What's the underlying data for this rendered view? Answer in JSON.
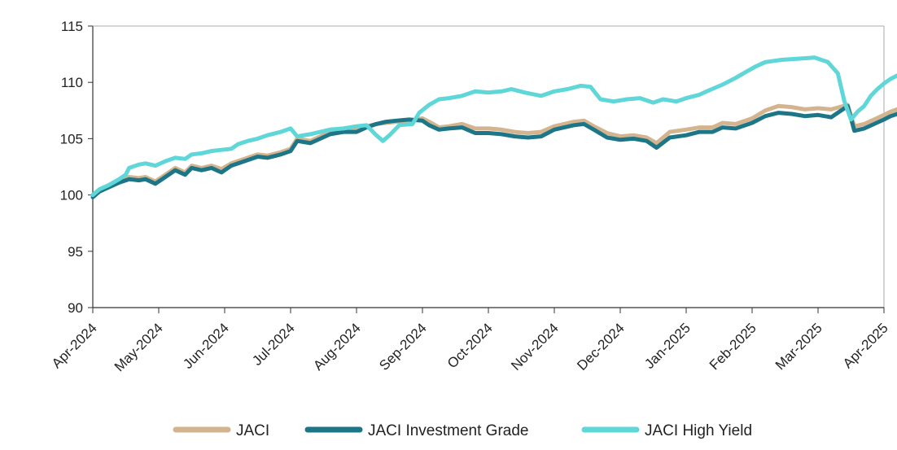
{
  "chart_data": {
    "type": "line",
    "title": "",
    "xlabel": "",
    "ylabel": "",
    "ylim": [
      90,
      115
    ],
    "yticks": [
      90,
      95,
      100,
      105,
      110,
      115
    ],
    "x_tick_labels": [
      "Apr-2024",
      "May-2024",
      "Jun-2024",
      "Jul-2024",
      "Aug-2024",
      "Sep-2024",
      "Oct-2024",
      "Nov-2024",
      "Dec-2024",
      "Jan-2025",
      "Feb-2025",
      "Mar-2025",
      "Apr-2025"
    ],
    "grid": false,
    "legend_position": "bottom",
    "series": [
      {
        "name": "JACI",
        "color": "#d4b48e",
        "points": [
          [
            0,
            100.0
          ],
          [
            0.1,
            100.4
          ],
          [
            0.25,
            100.8
          ],
          [
            0.4,
            101.3
          ],
          [
            0.55,
            101.6
          ],
          [
            0.7,
            101.5
          ],
          [
            0.8,
            101.6
          ],
          [
            0.95,
            101.2
          ],
          [
            1.1,
            101.8
          ],
          [
            1.25,
            102.4
          ],
          [
            1.4,
            102.0
          ],
          [
            1.5,
            102.6
          ],
          [
            1.65,
            102.4
          ],
          [
            1.8,
            102.6
          ],
          [
            1.95,
            102.3
          ],
          [
            2.1,
            102.8
          ],
          [
            2.3,
            103.2
          ],
          [
            2.5,
            103.6
          ],
          [
            2.65,
            103.5
          ],
          [
            2.85,
            103.8
          ],
          [
            3.0,
            104.1
          ],
          [
            3.1,
            105.0
          ],
          [
            3.3,
            104.8
          ],
          [
            3.45,
            105.2
          ],
          [
            3.6,
            105.6
          ],
          [
            3.8,
            105.8
          ],
          [
            4.0,
            105.9
          ],
          [
            4.15,
            106.1
          ],
          [
            4.3,
            106.3
          ],
          [
            4.45,
            106.4
          ],
          [
            4.6,
            106.5
          ],
          [
            4.8,
            106.6
          ],
          [
            5.0,
            106.8
          ],
          [
            5.1,
            106.5
          ],
          [
            5.25,
            106.0
          ],
          [
            5.4,
            106.1
          ],
          [
            5.6,
            106.3
          ],
          [
            5.8,
            105.9
          ],
          [
            6.0,
            105.9
          ],
          [
            6.2,
            105.8
          ],
          [
            6.4,
            105.6
          ],
          [
            6.6,
            105.5
          ],
          [
            6.8,
            105.6
          ],
          [
            7.0,
            106.1
          ],
          [
            7.15,
            106.3
          ],
          [
            7.3,
            106.5
          ],
          [
            7.45,
            106.6
          ],
          [
            7.6,
            106.1
          ],
          [
            7.8,
            105.5
          ],
          [
            8.0,
            105.2
          ],
          [
            8.2,
            105.3
          ],
          [
            8.4,
            105.1
          ],
          [
            8.55,
            104.6
          ],
          [
            8.75,
            105.6
          ],
          [
            9.0,
            105.8
          ],
          [
            9.2,
            106.0
          ],
          [
            9.4,
            106.0
          ],
          [
            9.55,
            106.4
          ],
          [
            9.75,
            106.3
          ],
          [
            10.0,
            106.8
          ],
          [
            10.2,
            107.5
          ],
          [
            10.4,
            107.9
          ],
          [
            10.6,
            107.8
          ],
          [
            10.8,
            107.6
          ],
          [
            11.0,
            107.7
          ],
          [
            11.2,
            107.6
          ],
          [
            11.45,
            108.0
          ],
          [
            11.55,
            106.1
          ],
          [
            11.7,
            106.3
          ],
          [
            11.85,
            106.7
          ],
          [
            12.0,
            107.1
          ],
          [
            12.1,
            107.4
          ],
          [
            12.2,
            107.6
          ],
          [
            12.3,
            107.8
          ],
          [
            12.35,
            108.0
          ]
        ]
      },
      {
        "name": "JACI Investment Grade",
        "color": "#1d7688",
        "points": [
          [
            0,
            99.8
          ],
          [
            0.1,
            100.3
          ],
          [
            0.25,
            100.7
          ],
          [
            0.4,
            101.1
          ],
          [
            0.55,
            101.4
          ],
          [
            0.7,
            101.3
          ],
          [
            0.8,
            101.4
          ],
          [
            0.95,
            101.0
          ],
          [
            1.1,
            101.6
          ],
          [
            1.25,
            102.2
          ],
          [
            1.4,
            101.8
          ],
          [
            1.5,
            102.4
          ],
          [
            1.65,
            102.2
          ],
          [
            1.8,
            102.4
          ],
          [
            1.95,
            102.0
          ],
          [
            2.1,
            102.6
          ],
          [
            2.3,
            103.0
          ],
          [
            2.5,
            103.4
          ],
          [
            2.65,
            103.3
          ],
          [
            2.85,
            103.6
          ],
          [
            3.0,
            103.9
          ],
          [
            3.1,
            104.8
          ],
          [
            3.3,
            104.6
          ],
          [
            3.45,
            105.0
          ],
          [
            3.6,
            105.4
          ],
          [
            3.8,
            105.6
          ],
          [
            4.0,
            105.6
          ],
          [
            4.15,
            106.0
          ],
          [
            4.3,
            106.3
          ],
          [
            4.45,
            106.5
          ],
          [
            4.6,
            106.6
          ],
          [
            4.8,
            106.7
          ],
          [
            5.0,
            106.6
          ],
          [
            5.1,
            106.2
          ],
          [
            5.25,
            105.8
          ],
          [
            5.4,
            105.9
          ],
          [
            5.6,
            106.0
          ],
          [
            5.8,
            105.5
          ],
          [
            6.0,
            105.5
          ],
          [
            6.2,
            105.4
          ],
          [
            6.4,
            105.2
          ],
          [
            6.6,
            105.1
          ],
          [
            6.8,
            105.2
          ],
          [
            7.0,
            105.8
          ],
          [
            7.15,
            106.0
          ],
          [
            7.3,
            106.2
          ],
          [
            7.45,
            106.3
          ],
          [
            7.6,
            105.8
          ],
          [
            7.8,
            105.1
          ],
          [
            8.0,
            104.9
          ],
          [
            8.2,
            105.0
          ],
          [
            8.4,
            104.8
          ],
          [
            8.55,
            104.2
          ],
          [
            8.75,
            105.1
          ],
          [
            9.0,
            105.3
          ],
          [
            9.2,
            105.6
          ],
          [
            9.4,
            105.6
          ],
          [
            9.55,
            106.0
          ],
          [
            9.75,
            105.9
          ],
          [
            10.0,
            106.4
          ],
          [
            10.2,
            107.0
          ],
          [
            10.4,
            107.3
          ],
          [
            10.6,
            107.2
          ],
          [
            10.8,
            107.0
          ],
          [
            11.0,
            107.1
          ],
          [
            11.2,
            106.9
          ],
          [
            11.45,
            107.9
          ],
          [
            11.55,
            105.7
          ],
          [
            11.7,
            105.9
          ],
          [
            11.85,
            106.3
          ],
          [
            12.0,
            106.7
          ],
          [
            12.1,
            107.0
          ],
          [
            12.2,
            107.2
          ],
          [
            12.3,
            107.4
          ],
          [
            12.35,
            107.6
          ]
        ]
      },
      {
        "name": "JACI High Yield",
        "color": "#5fd6d8",
        "points": [
          [
            0,
            100.0
          ],
          [
            0.1,
            100.5
          ],
          [
            0.25,
            100.9
          ],
          [
            0.4,
            101.4
          ],
          [
            0.5,
            101.8
          ],
          [
            0.55,
            102.4
          ],
          [
            0.7,
            102.7
          ],
          [
            0.8,
            102.8
          ],
          [
            0.95,
            102.6
          ],
          [
            1.1,
            103.0
          ],
          [
            1.25,
            103.3
          ],
          [
            1.4,
            103.2
          ],
          [
            1.5,
            103.6
          ],
          [
            1.65,
            103.7
          ],
          [
            1.8,
            103.9
          ],
          [
            1.95,
            104.0
          ],
          [
            2.1,
            104.1
          ],
          [
            2.2,
            104.5
          ],
          [
            2.35,
            104.8
          ],
          [
            2.5,
            105.0
          ],
          [
            2.65,
            105.3
          ],
          [
            2.85,
            105.6
          ],
          [
            3.0,
            105.9
          ],
          [
            3.1,
            105.2
          ],
          [
            3.3,
            105.4
          ],
          [
            3.45,
            105.6
          ],
          [
            3.6,
            105.8
          ],
          [
            3.8,
            105.9
          ],
          [
            4.0,
            106.1
          ],
          [
            4.15,
            106.2
          ],
          [
            4.3,
            105.3
          ],
          [
            4.4,
            104.8
          ],
          [
            4.5,
            105.3
          ],
          [
            4.65,
            106.2
          ],
          [
            4.85,
            106.3
          ],
          [
            4.95,
            107.3
          ],
          [
            5.1,
            108.0
          ],
          [
            5.25,
            108.5
          ],
          [
            5.4,
            108.6
          ],
          [
            5.6,
            108.8
          ],
          [
            5.8,
            109.2
          ],
          [
            6.0,
            109.1
          ],
          [
            6.2,
            109.2
          ],
          [
            6.35,
            109.4
          ],
          [
            6.55,
            109.1
          ],
          [
            6.8,
            108.8
          ],
          [
            7.0,
            109.2
          ],
          [
            7.2,
            109.4
          ],
          [
            7.4,
            109.7
          ],
          [
            7.55,
            109.6
          ],
          [
            7.7,
            108.5
          ],
          [
            7.9,
            108.3
          ],
          [
            8.1,
            108.5
          ],
          [
            8.3,
            108.6
          ],
          [
            8.5,
            108.2
          ],
          [
            8.65,
            108.5
          ],
          [
            8.85,
            108.3
          ],
          [
            9.0,
            108.6
          ],
          [
            9.2,
            108.9
          ],
          [
            9.35,
            109.3
          ],
          [
            9.55,
            109.8
          ],
          [
            9.75,
            110.4
          ],
          [
            9.9,
            110.9
          ],
          [
            10.05,
            111.4
          ],
          [
            10.2,
            111.8
          ],
          [
            10.45,
            112.0
          ],
          [
            10.7,
            112.1
          ],
          [
            10.95,
            112.2
          ],
          [
            11.15,
            111.8
          ],
          [
            11.3,
            110.8
          ],
          [
            11.4,
            108.3
          ],
          [
            11.5,
            106.7
          ],
          [
            11.6,
            107.4
          ],
          [
            11.7,
            107.9
          ],
          [
            11.8,
            108.8
          ],
          [
            11.9,
            109.4
          ],
          [
            12.0,
            109.9
          ],
          [
            12.1,
            110.3
          ],
          [
            12.2,
            110.6
          ],
          [
            12.3,
            110.2
          ],
          [
            12.35,
            109.8
          ]
        ]
      }
    ]
  }
}
